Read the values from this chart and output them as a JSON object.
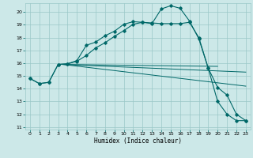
{
  "xlabel": "Humidex (Indice chaleur)",
  "bg_color": "#cce8e8",
  "grid_color": "#9ac8c8",
  "line_color": "#006868",
  "xlim": [
    -0.5,
    23.5
  ],
  "ylim": [
    10.8,
    20.7
  ],
  "yticks": [
    11,
    12,
    13,
    14,
    15,
    16,
    17,
    18,
    19,
    20
  ],
  "xticks": [
    0,
    1,
    2,
    3,
    4,
    5,
    6,
    7,
    8,
    9,
    10,
    11,
    12,
    13,
    14,
    15,
    16,
    17,
    18,
    19,
    20,
    21,
    22,
    23
  ],
  "curve1_x": [
    0,
    1,
    2,
    3,
    4,
    5,
    6,
    7,
    8,
    9,
    10,
    11,
    12,
    13,
    14,
    15,
    16,
    17,
    18,
    19,
    20,
    21,
    22,
    23
  ],
  "curve1_y": [
    14.8,
    14.4,
    14.5,
    15.9,
    15.95,
    16.2,
    17.4,
    17.65,
    18.15,
    18.5,
    19.05,
    19.25,
    19.2,
    19.1,
    20.25,
    20.5,
    20.3,
    19.3,
    17.9,
    15.6,
    13.0,
    12.0,
    11.5,
    11.5
  ],
  "curve2_x": [
    0,
    1,
    2,
    3,
    4,
    5,
    6,
    7,
    8,
    9,
    10,
    11,
    12,
    13,
    14,
    15,
    16,
    17,
    18,
    19,
    20,
    21,
    22,
    23
  ],
  "curve2_y": [
    14.8,
    14.4,
    14.5,
    15.9,
    15.95,
    16.15,
    16.6,
    17.2,
    17.6,
    18.1,
    18.55,
    19.05,
    19.2,
    19.15,
    19.1,
    19.1,
    19.1,
    19.2,
    18.0,
    15.6,
    14.1,
    13.5,
    12.0,
    11.5
  ],
  "line3_x": [
    3.5,
    20
  ],
  "line3_y": [
    15.9,
    15.75
  ],
  "line4_x": [
    3.5,
    23
  ],
  "line4_y": [
    15.9,
    15.3
  ],
  "line5_x": [
    3.5,
    23
  ],
  "line5_y": [
    15.9,
    14.2
  ]
}
